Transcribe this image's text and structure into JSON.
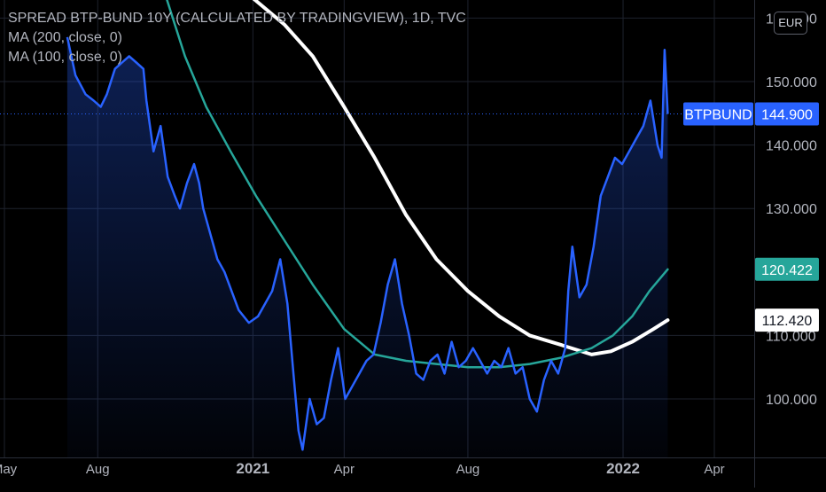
{
  "chart_data": {
    "type": "line",
    "title": "SPREAD BTP-BUND 10Y (CALCULATED BY TRADINGVIEW), 1D, TVC",
    "symbol": "BTPBUND",
    "currency": "EUR",
    "ylim": [
      92,
      163
    ],
    "y_ticks": [
      "160.000",
      "150.000",
      "140.000",
      "130.000",
      "110.000",
      "100.000"
    ],
    "x_ticks": [
      "May",
      "Aug",
      "2021",
      "Apr",
      "Aug",
      "2022",
      "Apr"
    ],
    "last_price": "144.900",
    "series": [
      {
        "name": "BTPBUND",
        "color": "#2962ff",
        "fill": true,
        "points": [
          [
            "2020-07-02",
            157
          ],
          [
            "2020-07-10",
            151
          ],
          [
            "2020-07-20",
            148
          ],
          [
            "2020-07-28",
            147
          ],
          [
            "2020-08-04",
            146
          ],
          [
            "2020-08-10",
            148
          ],
          [
            "2020-08-18",
            152
          ],
          [
            "2020-08-25",
            153
          ],
          [
            "2020-09-01",
            154
          ],
          [
            "2020-09-08",
            153
          ],
          [
            "2020-09-15",
            152
          ],
          [
            "2020-09-18",
            147
          ],
          [
            "2020-09-25",
            139
          ],
          [
            "2020-10-02",
            143
          ],
          [
            "2020-10-09",
            135
          ],
          [
            "2020-10-16",
            132
          ],
          [
            "2020-10-21",
            130
          ],
          [
            "2020-10-28",
            134
          ],
          [
            "2020-11-04",
            137
          ],
          [
            "2020-11-09",
            134
          ],
          [
            "2020-11-13",
            130
          ],
          [
            "2020-11-20",
            126
          ],
          [
            "2020-11-27",
            122
          ],
          [
            "2020-12-04",
            120
          ],
          [
            "2020-12-11",
            117
          ],
          [
            "2020-12-18",
            114
          ],
          [
            "2020-12-28",
            112
          ],
          [
            "2021-01-06",
            113
          ],
          [
            "2021-01-13",
            115
          ],
          [
            "2021-01-20",
            117
          ],
          [
            "2021-01-28",
            122
          ],
          [
            "2021-02-04",
            115
          ],
          [
            "2021-02-10",
            104
          ],
          [
            "2021-02-15",
            95
          ],
          [
            "2021-02-19",
            92
          ],
          [
            "2021-02-26",
            100
          ],
          [
            "2021-03-05",
            96
          ],
          [
            "2021-03-12",
            97
          ],
          [
            "2021-03-19",
            103
          ],
          [
            "2021-03-26",
            108
          ],
          [
            "2021-04-02",
            100
          ],
          [
            "2021-04-09",
            102
          ],
          [
            "2021-04-16",
            104
          ],
          [
            "2021-04-23",
            106
          ],
          [
            "2021-04-30",
            107
          ],
          [
            "2021-05-07",
            112
          ],
          [
            "2021-05-14",
            118
          ],
          [
            "2021-05-21",
            122
          ],
          [
            "2021-05-28",
            115
          ],
          [
            "2021-06-04",
            110
          ],
          [
            "2021-06-11",
            104
          ],
          [
            "2021-06-18",
            103
          ],
          [
            "2021-06-25",
            106
          ],
          [
            "2021-07-02",
            107
          ],
          [
            "2021-07-09",
            104
          ],
          [
            "2021-07-16",
            109
          ],
          [
            "2021-07-23",
            105
          ],
          [
            "2021-07-30",
            106
          ],
          [
            "2021-08-06",
            108
          ],
          [
            "2021-08-13",
            106
          ],
          [
            "2021-08-20",
            104
          ],
          [
            "2021-08-27",
            106
          ],
          [
            "2021-09-03",
            105
          ],
          [
            "2021-09-10",
            108
          ],
          [
            "2021-09-17",
            104
          ],
          [
            "2021-09-24",
            105
          ],
          [
            "2021-10-01",
            100
          ],
          [
            "2021-10-08",
            98
          ],
          [
            "2021-10-15",
            103
          ],
          [
            "2021-10-22",
            106
          ],
          [
            "2021-10-29",
            104
          ],
          [
            "2021-11-05",
            108
          ],
          [
            "2021-11-08",
            117
          ],
          [
            "2021-11-12",
            124
          ],
          [
            "2021-11-19",
            116
          ],
          [
            "2021-11-26",
            118
          ],
          [
            "2021-12-03",
            124
          ],
          [
            "2021-12-10",
            132
          ],
          [
            "2021-12-17",
            135
          ],
          [
            "2021-12-24",
            138
          ],
          [
            "2021-12-31",
            137
          ],
          [
            "2022-01-07",
            139
          ],
          [
            "2022-01-14",
            141
          ],
          [
            "2022-01-21",
            143
          ],
          [
            "2022-01-28",
            147
          ],
          [
            "2022-02-04",
            140
          ],
          [
            "2022-02-08",
            138
          ],
          [
            "2022-02-11",
            155
          ],
          [
            "2022-02-14",
            144.9
          ]
        ]
      },
      {
        "name": "MA (100, close, 0)",
        "color": "#26a69a",
        "points": [
          [
            "2020-10-08",
            163
          ],
          [
            "2020-10-26",
            154
          ],
          [
            "2020-11-16",
            146
          ],
          [
            "2020-12-10",
            139
          ],
          [
            "2021-01-04",
            132
          ],
          [
            "2021-02-01",
            125
          ],
          [
            "2021-03-01",
            118
          ],
          [
            "2021-04-01",
            111
          ],
          [
            "2021-05-01",
            107
          ],
          [
            "2021-06-01",
            106
          ],
          [
            "2021-07-01",
            105.5
          ],
          [
            "2021-08-01",
            105
          ],
          [
            "2021-09-01",
            105
          ],
          [
            "2021-10-01",
            105.5
          ],
          [
            "2021-11-01",
            106.5
          ],
          [
            "2021-12-01",
            108
          ],
          [
            "2021-12-22",
            110
          ],
          [
            "2022-01-10",
            113
          ],
          [
            "2022-01-27",
            117
          ],
          [
            "2022-02-14",
            120.422
          ]
        ]
      },
      {
        "name": "MA (200, close, 0)",
        "color": "#ffffff",
        "points": [
          [
            "2021-01-02",
            163
          ],
          [
            "2021-02-01",
            159
          ],
          [
            "2021-03-01",
            154
          ],
          [
            "2021-04-01",
            146
          ],
          [
            "2021-05-01",
            138
          ],
          [
            "2021-06-01",
            129
          ],
          [
            "2021-07-01",
            122
          ],
          [
            "2021-08-01",
            117
          ],
          [
            "2021-09-01",
            113
          ],
          [
            "2021-10-01",
            110
          ],
          [
            "2021-11-01",
            108.5
          ],
          [
            "2021-12-01",
            107
          ],
          [
            "2021-12-20",
            107.5
          ],
          [
            "2022-01-10",
            109
          ],
          [
            "2022-01-31",
            111
          ],
          [
            "2022-02-14",
            112.42
          ]
        ]
      }
    ],
    "price_labels": [
      {
        "series": "BTPBUND",
        "name_text": "BTPBUND",
        "text": "144.900",
        "value": 144.9,
        "bg": "#2962ff",
        "fg": "#ffffff"
      },
      {
        "series": "MA (100, close, 0)",
        "text": "120.422",
        "value": 120.422,
        "bg": "#26a69a",
        "fg": "#ffffff"
      },
      {
        "series": "MA (200, close, 0)",
        "text": "112.420",
        "value": 112.42,
        "bg": "#ffffff",
        "fg": "#131722"
      }
    ],
    "grid": true,
    "legend_position": "top-left"
  },
  "legend": {
    "title": "SPREAD BTP-BUND 10Y (CALCULATED BY TRADINGVIEW), 1D, TVC",
    "ma200": "MA (200, close, 0)",
    "ma100": "MA (100, close, 0)"
  },
  "currency_button": "EUR"
}
